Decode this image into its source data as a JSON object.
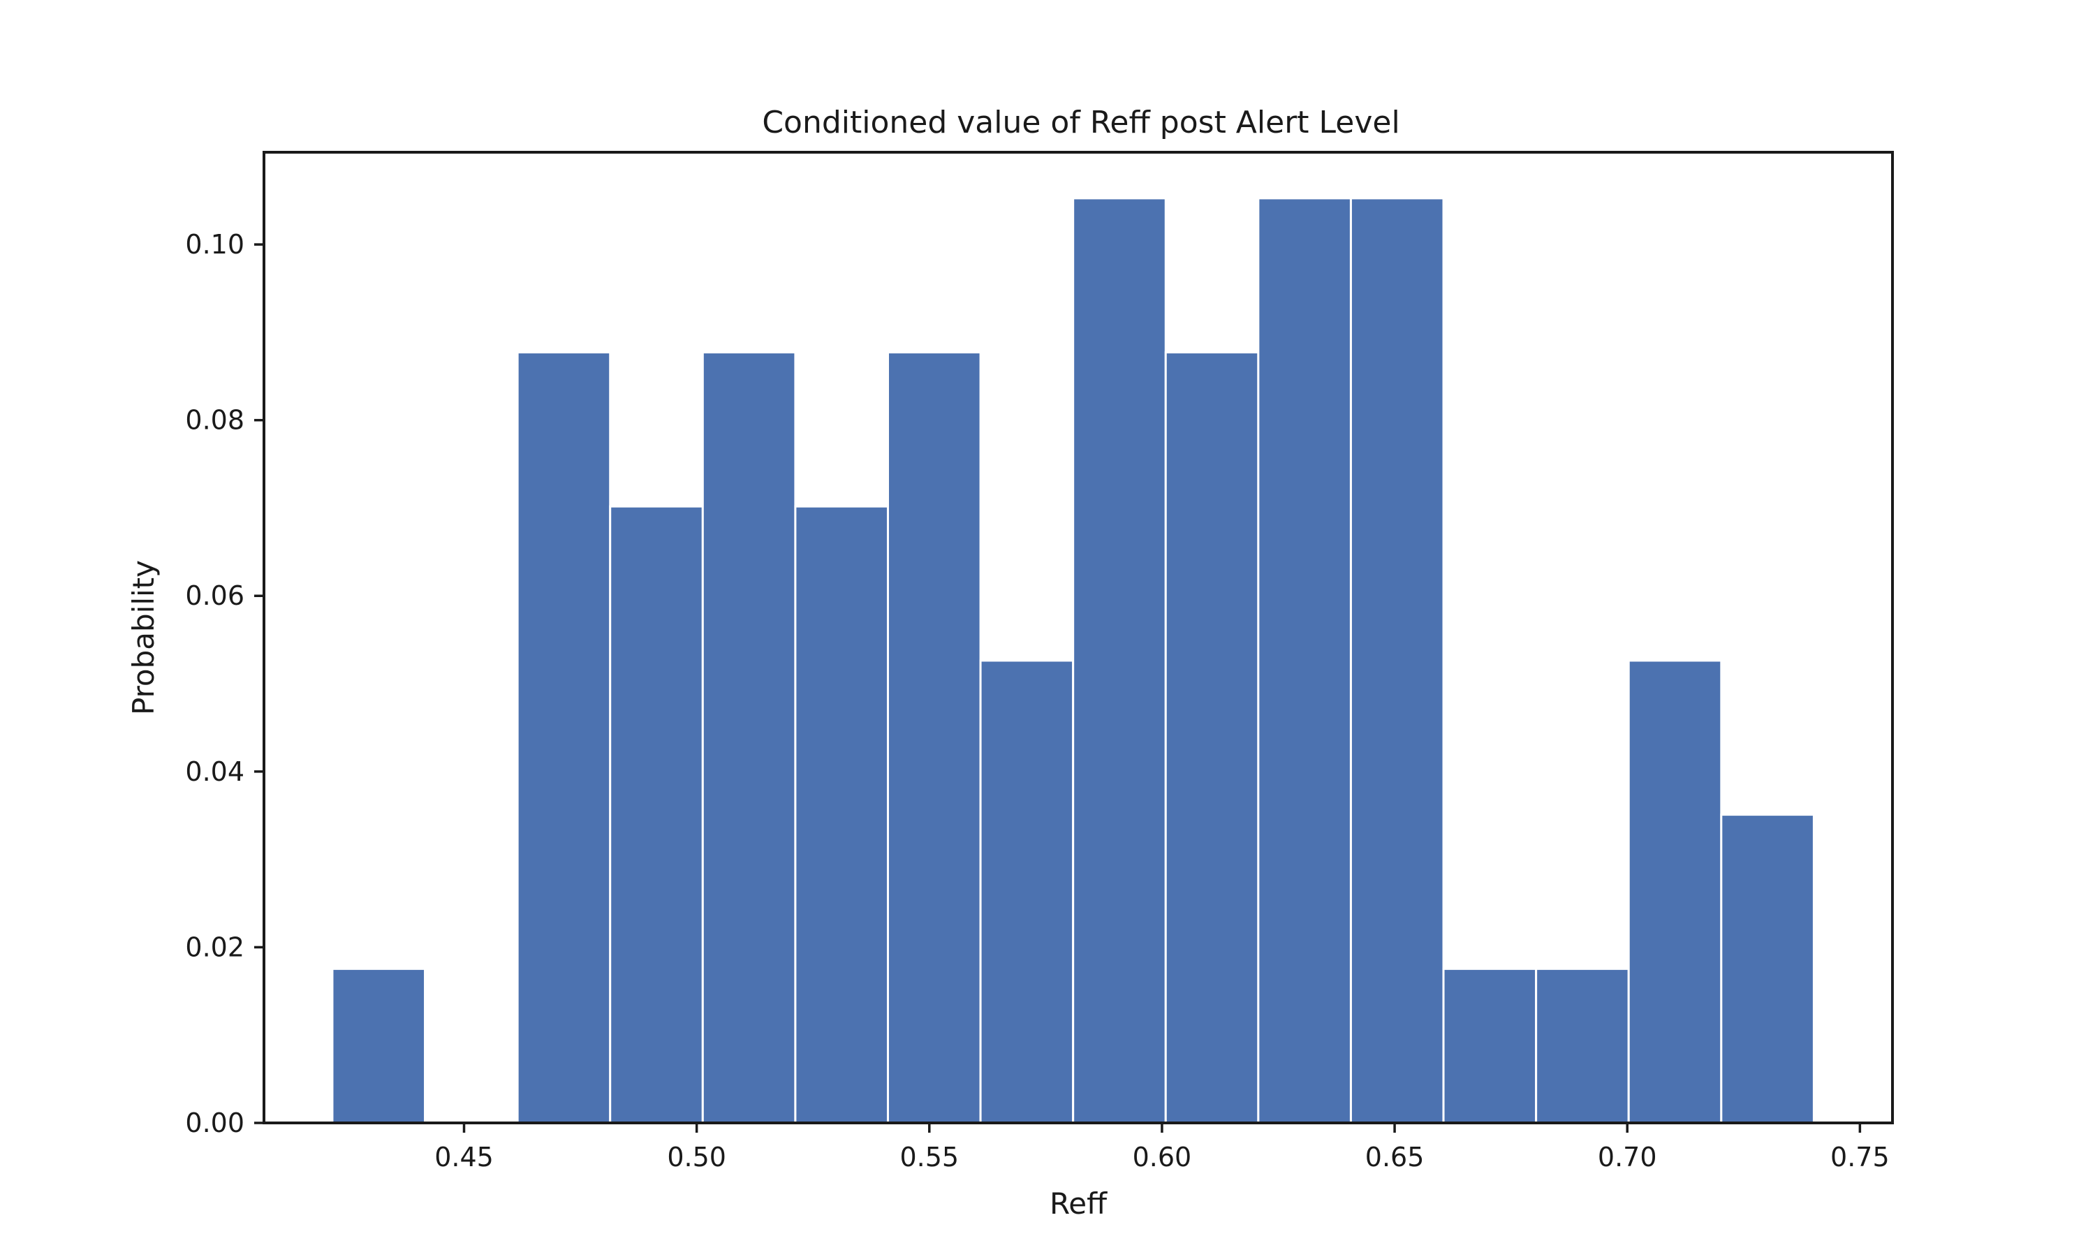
{
  "chart_data": {
    "type": "bar",
    "title": "Conditioned value of Reff post Alert Level",
    "xlabel": "Reff",
    "ylabel": "Probability",
    "xlim": [
      0.407,
      0.757
    ],
    "ylim": [
      0,
      0.1105
    ],
    "x_ticks": [
      0.45,
      0.5,
      0.55,
      0.6,
      0.65,
      0.7,
      0.75
    ],
    "x_tick_labels": [
      "0.45",
      "0.50",
      "0.55",
      "0.60",
      "0.65",
      "0.70",
      "0.75"
    ],
    "y_ticks": [
      0.0,
      0.02,
      0.04,
      0.06,
      0.08,
      0.1
    ],
    "y_tick_labels": [
      "0.00",
      "0.02",
      "0.04",
      "0.06",
      "0.08",
      "0.10"
    ],
    "bar_color": "#4c72b0",
    "bin_edges": [
      0.4217,
      0.4416,
      0.4615,
      0.4814,
      0.5013,
      0.5212,
      0.5411,
      0.561,
      0.5809,
      0.6008,
      0.6207,
      0.6406,
      0.6605,
      0.6804,
      0.7003,
      0.7202,
      0.7401
    ],
    "values": [
      0.01754,
      0.0,
      0.08772,
      0.07018,
      0.08772,
      0.07018,
      0.08772,
      0.05263,
      0.10526,
      0.08772,
      0.10526,
      0.10526,
      0.01754,
      0.01754,
      0.05263,
      0.03509
    ],
    "grid": false,
    "legend": "none"
  }
}
